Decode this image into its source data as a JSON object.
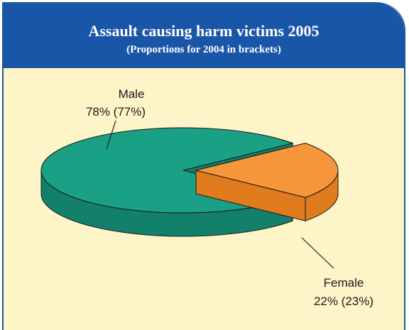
{
  "chart_data": {
    "type": "pie",
    "title": "Assault causing harm victims 2005",
    "subtitle": "(Proportions for 2004 in brackets)",
    "slices": [
      {
        "label": "Male",
        "value": 78,
        "value_label": "78% (77%)",
        "prior_label": "77%",
        "color": "#1aa085",
        "side_color": "#12806a"
      },
      {
        "label": "Female",
        "value": 22,
        "value_label": "22% (23%)",
        "prior_label": "23%",
        "color": "#f5963a",
        "side_color": "#e07b1e"
      }
    ],
    "colors": {
      "header": "#1a56a8",
      "background": "#fdf5c8"
    }
  }
}
